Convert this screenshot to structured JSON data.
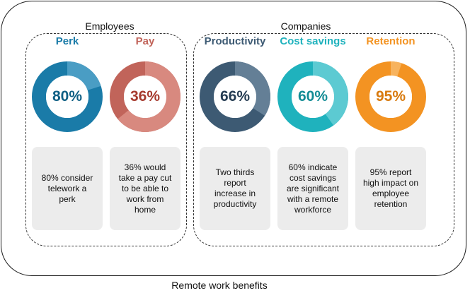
{
  "groups": [
    {
      "label": "Employees"
    },
    {
      "label": "Companies"
    }
  ],
  "cards": [
    {
      "title": "Perk",
      "percent": 80,
      "percent_label": "80%",
      "color": "#1a7ba8",
      "dark": "#0f5f84",
      "light": "#4a9dc4",
      "description": "80% consider\ntelework a\nperk"
    },
    {
      "title": "Pay",
      "percent": 36,
      "percent_label": "36%",
      "color": "#c1645a",
      "dark": "#a63a2e",
      "light": "#d8897f",
      "description": "36%  would\ntake a pay cut\nto be able to\nwork from\nhome"
    },
    {
      "title": "Productivity",
      "percent": 66,
      "percent_label": "66%",
      "color": "#3d5a73",
      "dark": "#253c52",
      "light": "#647f96",
      "description": "Two thirds\nreport\nincrease in\nproductivity"
    },
    {
      "title": "Cost savings",
      "percent": 60,
      "percent_label": "60%",
      "color": "#1fb2bd",
      "dark": "#138c95",
      "light": "#5ccad2",
      "description": "60% indicate\ncost savings\nare significant\nwith a remote\nworkforce"
    },
    {
      "title": "Retention",
      "percent": 95,
      "percent_label": "95%",
      "color": "#f39322",
      "dark": "#d87a0e",
      "light": "#f7b35e",
      "description": "95% report\nhigh impact on\nemployee\nretention"
    }
  ],
  "caption": "Remote work benefits"
}
